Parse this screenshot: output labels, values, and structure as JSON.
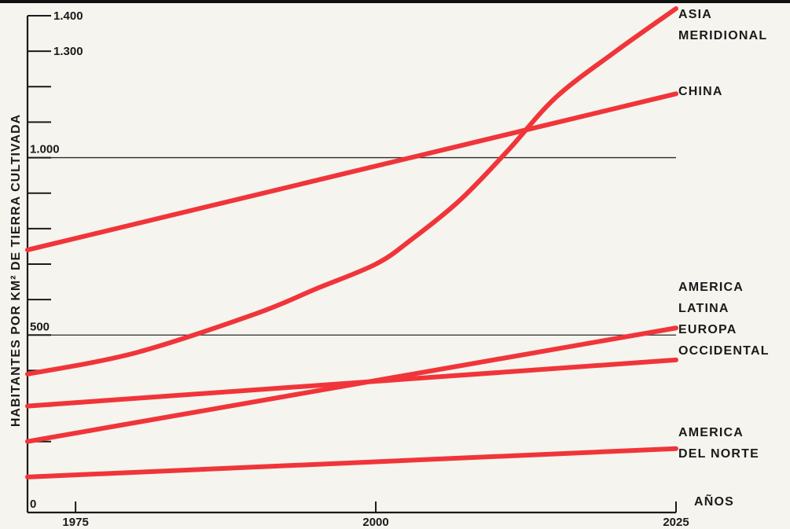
{
  "chart_data": {
    "type": "line",
    "ylabel": "HABITANTES POR KM² DE TIERRA CULTIVADA",
    "xlabel": "AÑOS",
    "x_ticks": [
      {
        "value": 1975,
        "label": "1975"
      },
      {
        "value": 2000,
        "label": "2000"
      },
      {
        "value": 2025,
        "label": "2025"
      }
    ],
    "xlim": [
      1971,
      2025
    ],
    "ylim": [
      0,
      1400
    ],
    "y_ticks": [
      100,
      200,
      300,
      400,
      500,
      600,
      700,
      800,
      900,
      1000,
      1100,
      1200,
      1300,
      1400
    ],
    "y_tick_labels": [
      {
        "value": 0,
        "label": "0"
      },
      {
        "value": 500,
        "label": "500"
      },
      {
        "value": 1000,
        "label": "1.000"
      },
      {
        "value": 1300,
        "label": "1.300"
      },
      {
        "value": 1400,
        "label": "1.400"
      }
    ],
    "reference_lines": [
      500,
      1000
    ],
    "series": [
      {
        "name": "ASIA MERIDIONAL",
        "label_lines": [
          "ASIA",
          "MERIDIONAL"
        ],
        "points": [
          [
            1971,
            390
          ],
          [
            1980,
            450
          ],
          [
            1990,
            560
          ],
          [
            1995,
            630
          ],
          [
            2000,
            700
          ],
          [
            2003,
            770
          ],
          [
            2007,
            880
          ],
          [
            2011,
            1020
          ],
          [
            2015,
            1170
          ],
          [
            2020,
            1300
          ],
          [
            2025,
            1420
          ]
        ]
      },
      {
        "name": "CHINA",
        "label_lines": [
          "CHINA"
        ],
        "points": [
          [
            1971,
            740
          ],
          [
            2025,
            1180
          ]
        ]
      },
      {
        "name": "AMERICA LATINA",
        "label_lines": [
          "AMERICA",
          "LATINA"
        ],
        "points": [
          [
            1971,
            200
          ],
          [
            2025,
            520
          ]
        ]
      },
      {
        "name": "EUROPA OCCIDENTAL",
        "label_lines": [
          "EUROPA",
          "OCCIDENTAL"
        ],
        "points": [
          [
            1971,
            300
          ],
          [
            2025,
            430
          ]
        ]
      },
      {
        "name": "AMERICA DEL NORTE",
        "label_lines": [
          "AMERICA",
          "DEL NORTE"
        ],
        "points": [
          [
            1971,
            100
          ],
          [
            2025,
            180
          ]
        ]
      }
    ],
    "grid": false,
    "colors": {
      "series": "#f0353a",
      "axis": "#1a1a1a",
      "reference": "#2a2a2a"
    }
  }
}
